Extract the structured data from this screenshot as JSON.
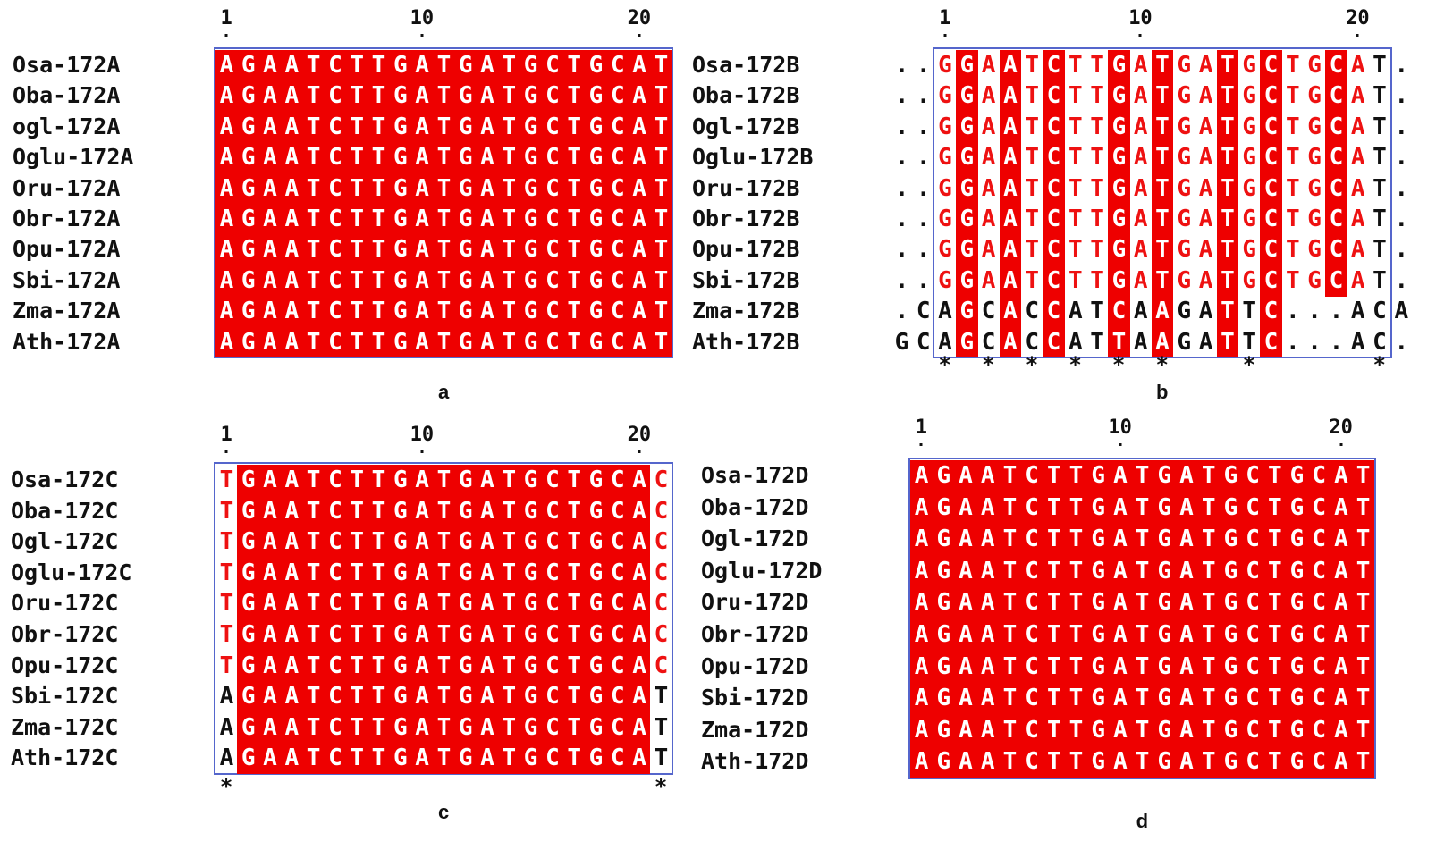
{
  "panels": [
    {
      "letter": "a",
      "ticks": [
        {
          "n": 1,
          "label": "1"
        },
        {
          "n": 10,
          "label": "10"
        },
        {
          "n": 20,
          "label": "20"
        }
      ],
      "rows": [
        {
          "name": "Osa-172A",
          "seq": "AGAATCTTGATGATGCTGCAT"
        },
        {
          "name": "Oba-172A",
          "seq": "AGAATCTTGATGATGCTGCAT"
        },
        {
          "name": "ogl-172A",
          "seq": "AGAATCTTGATGATGCTGCAT"
        },
        {
          "name": "Oglu-172A",
          "seq": "AGAATCTTGATGATGCTGCAT"
        },
        {
          "name": "Oru-172A",
          "seq": "AGAATCTTGATGATGCTGCAT"
        },
        {
          "name": "Obr-172A",
          "seq": "AGAATCTTGATGATGCTGCAT"
        },
        {
          "name": "Opu-172A",
          "seq": "AGAATCTTGATGATGCTGCAT"
        },
        {
          "name": "Sbi-172A",
          "seq": "AGAATCTTGATGATGCTGCAT"
        },
        {
          "name": "Zma-172A",
          "seq": "AGAATCTTGATGATGCTGCAT"
        },
        {
          "name": "Ath-172A",
          "seq": "AGAATCTTGATGATGCTGCAT"
        }
      ],
      "styles": [
        "RRRRRRRRRRRRRRRRRRRRR"
      ],
      "stars": []
    },
    {
      "letter": "b",
      "ticks": [
        {
          "n": 1,
          "label": "1"
        },
        {
          "n": 10,
          "label": "10"
        },
        {
          "n": 20,
          "label": "20"
        }
      ],
      "rows": [
        {
          "name": "Osa-172B",
          "seq": "..GGAATCTTGATGATGCTGCAT."
        },
        {
          "name": "Oba-172B",
          "seq": "..GGAATCTTGATGATGCTGCAT."
        },
        {
          "name": "Ogl-172B",
          "seq": "..GGAATCTTGATGATGCTGCAT."
        },
        {
          "name": "Oglu-172B",
          "seq": "..GGAATCTTGATGATGCTGCAT."
        },
        {
          "name": "Oru-172B",
          "seq": "..GGAATCTTGATGATGCTGCAT."
        },
        {
          "name": "Obr-172B",
          "seq": "..GGAATCTTGATGATGCTGCAT."
        },
        {
          "name": "Opu-172B",
          "seq": "..GGAATCTTGATGATGCTGCAT."
        },
        {
          "name": "Sbi-172B",
          "seq": "..GGAATCTTGATGATGCTGCAT."
        },
        {
          "name": "Zma-172B",
          "seq": ".CAGCACCATCAAGATTC...ACA"
        },
        {
          "name": "Ath-172B",
          "seq": "GCAGCACCATTAAGATTC...AC."
        }
      ],
      "styles": [
        "..tRtRtRttRtRttRtRttRt."
      ],
      "stars": [
        3,
        5,
        7,
        9,
        11,
        13,
        17,
        23
      ]
    },
    {
      "letter": "c",
      "ticks": [
        {
          "n": 1,
          "label": "1"
        },
        {
          "n": 10,
          "label": "10"
        },
        {
          "n": 20,
          "label": "20"
        }
      ],
      "rows": [
        {
          "name": "Osa-172C",
          "seq": "TGAATCTTGATGATGCTGCAC"
        },
        {
          "name": "Oba-172C",
          "seq": "TGAATCTTGATGATGCTGCAC"
        },
        {
          "name": "Ogl-172C",
          "seq": "TGAATCTTGATGATGCTGCAC"
        },
        {
          "name": "Oglu-172C",
          "seq": "TGAATCTTGATGATGCTGCAC"
        },
        {
          "name": "Oru-172C",
          "seq": "TGAATCTTGATGATGCTGCAC"
        },
        {
          "name": "Obr-172C",
          "seq": "TGAATCTTGATGATGCTGCAC"
        },
        {
          "name": "Opu-172C",
          "seq": "TGAATCTTGATGATGCTGCAC"
        },
        {
          "name": "Sbi-172C",
          "seq": "AGAATCTTGATGATGCTGCAT"
        },
        {
          "name": "Zma-172C",
          "seq": "AGAATCTTGATGATGCTGCAT"
        },
        {
          "name": "Ath-172C",
          "seq": "AGAATCTTGATGATGCTGCAT"
        }
      ],
      "styles": [
        "tRRRRRRRRRRRRRRRRRRRt"
      ],
      "stars": [
        1,
        21
      ]
    },
    {
      "letter": "d",
      "ticks": [
        {
          "n": 1,
          "label": "1"
        },
        {
          "n": 10,
          "label": "10"
        },
        {
          "n": 20,
          "label": "20"
        }
      ],
      "rows": [
        {
          "name": "Osa-172D",
          "seq": "AGAATCTTGATGATGCTGCAT"
        },
        {
          "name": "Oba-172D",
          "seq": "AGAATCTTGATGATGCTGCAT"
        },
        {
          "name": "Ogl-172D",
          "seq": "AGAATCTTGATGATGCTGCAT"
        },
        {
          "name": "Oglu-172D",
          "seq": "AGAATCTTGATGATGCTGCAT"
        },
        {
          "name": "Oru-172D",
          "seq": "AGAATCTTGATGATGCTGCAT"
        },
        {
          "name": "Obr-172D",
          "seq": "AGAATCTTGATGATGCTGCAT"
        },
        {
          "name": "Opu-172D",
          "seq": "AGAATCTTGATGATGCTGCAT"
        },
        {
          "name": "Sbi-172D",
          "seq": "AGAATCTTGATGATGCTGCAT"
        },
        {
          "name": "Zma-172D",
          "seq": "AGAATCTTGATGATGCTGCAT"
        },
        {
          "name": "Ath-172D",
          "seq": "AGAATCTTGATGATGCTGCAT"
        }
      ],
      "styles": [
        "RRRRRRRRRRRRRRRRRRRRR"
      ],
      "stars": []
    }
  ],
  "colors": {
    "conserved_bg": "#ee0000",
    "similar_text": "#ee1111",
    "frame": "#5566cc"
  }
}
